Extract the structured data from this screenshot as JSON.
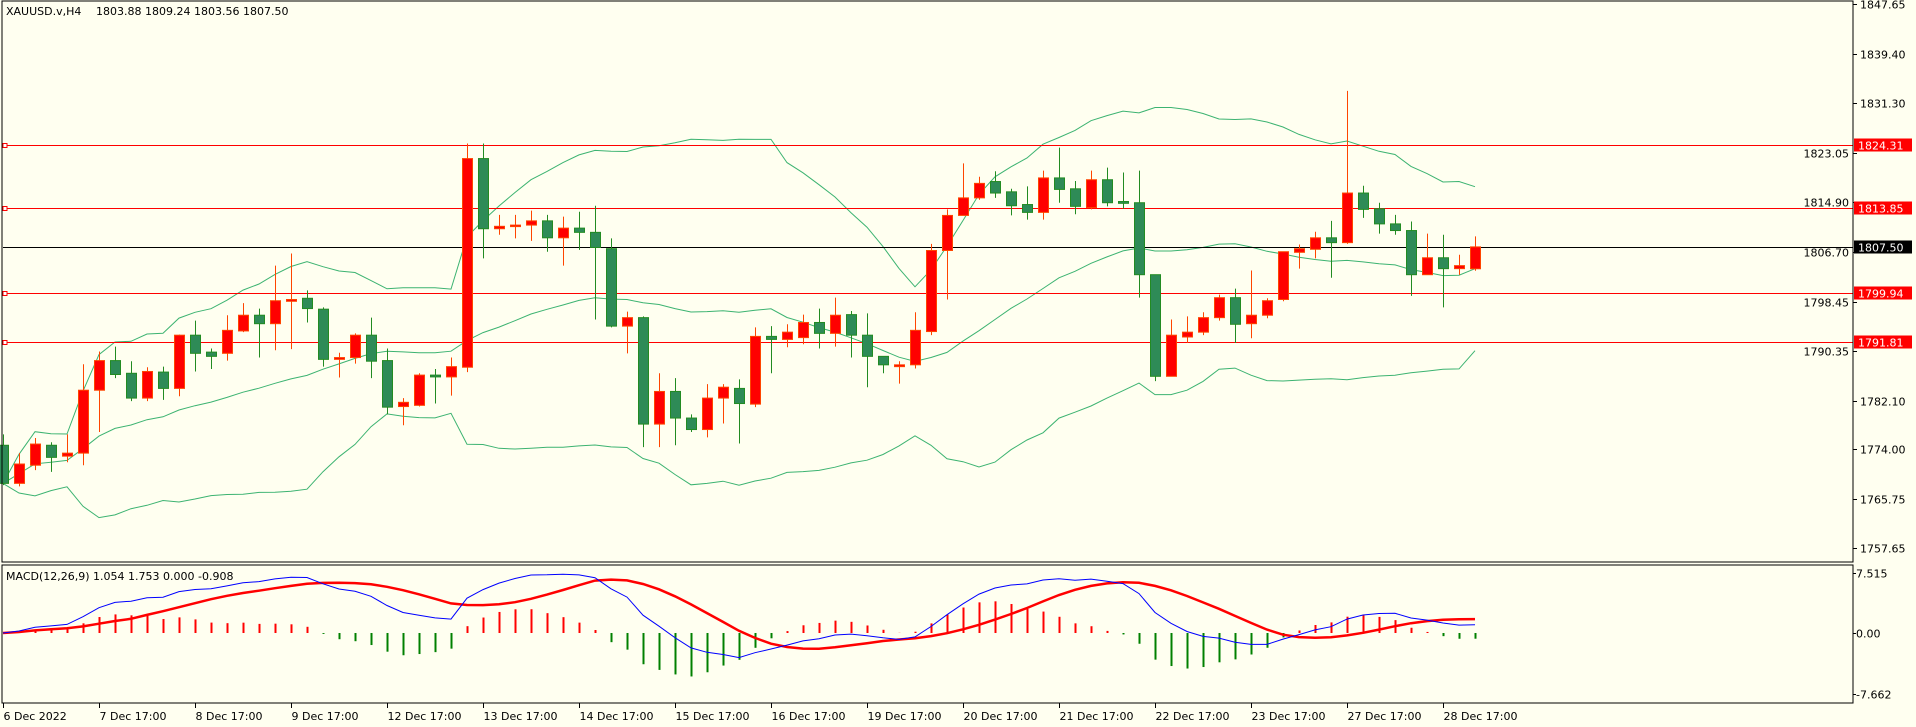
{
  "header": {
    "symbol": "XAUUSD.v,H4",
    "ohlc": "1803.88 1809.24 1803.56 1807.50"
  },
  "macd_panel": {
    "label": "MACD(12,26,9) 1.054 1.753 0.000 -0.908",
    "ticks": [
      "7.515",
      "0.00",
      "-7.662"
    ]
  },
  "price_axis": {
    "ticks": [
      "1847.65",
      "1839.40",
      "1831.30",
      "1823.05",
      "1814.90",
      "1806.70",
      "1798.45",
      "1790.35",
      "1782.10",
      "1774.00",
      "1765.75",
      "1757.65"
    ]
  },
  "levels": [
    {
      "label": "1824.31",
      "value": 1824.31,
      "color": "#FF0000"
    },
    {
      "label": "1813.85",
      "value": 1813.85,
      "color": "#FF0000"
    },
    {
      "label": "1807.50",
      "value": 1807.5,
      "color": "#000000"
    },
    {
      "label": "1799.94",
      "value": 1799.94,
      "color": "#FF0000"
    },
    {
      "label": "1791.81",
      "value": 1791.81,
      "color": "#FF0000"
    }
  ],
  "time_axis": {
    "labels": [
      "6 Dec 2022",
      "7 Dec 17:00",
      "8 Dec 17:00",
      "9 Dec 17:00",
      "12 Dec 17:00",
      "13 Dec 17:00",
      "14 Dec 17:00",
      "15 Dec 17:00",
      "16 Dec 17:00",
      "19 Dec 17:00",
      "20 Dec 17:00",
      "21 Dec 17:00",
      "22 Dec 17:00",
      "23 Dec 17:00",
      "27 Dec 17:00",
      "28 Dec 17:00"
    ],
    "candles_per_label": 6
  },
  "colors": {
    "background": "#FFFFF0",
    "bull_candle": "#FF0000",
    "bear_candle": "#2E8B57",
    "bollinger": "#3CB371",
    "macd_line": "#0000FF",
    "signal_line": "#FF0000",
    "hist_positive": "#FF0000",
    "hist_negative": "#008000"
  },
  "chart_data": {
    "type": "candlestick",
    "symbol": "XAUUSD.v",
    "timeframe": "H4",
    "ylim": [
      1755.4,
      1848.15
    ],
    "macd_ylim": [
      -8.75,
      8.5
    ],
    "indicators": [
      "Bollinger Bands (20,2)",
      "MACD(12,26,9)"
    ],
    "ohlc": [
      [
        1774.7,
        1776.5,
        1768.1,
        1768.4
      ],
      [
        1768.4,
        1773.4,
        1767.9,
        1771.6
      ],
      [
        1771.4,
        1775.9,
        1770.6,
        1774.9
      ],
      [
        1774.7,
        1775.2,
        1770.3,
        1772.7
      ],
      [
        1772.9,
        1776.5,
        1771.9,
        1773.4
      ],
      [
        1773.4,
        1788.1,
        1771.4,
        1783.8
      ],
      [
        1783.8,
        1790.2,
        1776.9,
        1788.7
      ],
      [
        1788.7,
        1791.0,
        1785.8,
        1786.4
      ],
      [
        1786.6,
        1788.6,
        1782.0,
        1782.5
      ],
      [
        1782.5,
        1787.6,
        1782.0,
        1786.9
      ],
      [
        1786.8,
        1787.7,
        1782.2,
        1784.1
      ],
      [
        1784.1,
        1793.0,
        1782.8,
        1792.9
      ],
      [
        1792.9,
        1795.3,
        1786.9,
        1789.9
      ],
      [
        1790.1,
        1790.7,
        1787.3,
        1789.4
      ],
      [
        1789.9,
        1796.2,
        1788.7,
        1793.7
      ],
      [
        1793.6,
        1798.2,
        1793.4,
        1796.2
      ],
      [
        1796.2,
        1797.3,
        1789.2,
        1794.8
      ],
      [
        1794.8,
        1804.4,
        1790.4,
        1798.6
      ],
      [
        1798.5,
        1806.4,
        1790.6,
        1798.8
      ],
      [
        1799.0,
        1800.3,
        1795.0,
        1797.3
      ],
      [
        1797.2,
        1797.5,
        1787.7,
        1788.9
      ],
      [
        1788.9,
        1790.0,
        1785.9,
        1789.2
      ],
      [
        1789.2,
        1793.2,
        1788.2,
        1792.9
      ],
      [
        1792.9,
        1795.8,
        1785.8,
        1788.6
      ],
      [
        1788.7,
        1790.7,
        1779.8,
        1781.0
      ],
      [
        1781.1,
        1782.5,
        1778.0,
        1781.8
      ],
      [
        1781.3,
        1786.6,
        1781.1,
        1786.3
      ],
      [
        1786.3,
        1787.3,
        1781.6,
        1786.0
      ],
      [
        1786.0,
        1789.2,
        1782.9,
        1787.7
      ],
      [
        1787.6,
        1824.6,
        1786.8,
        1822.1
      ],
      [
        1822.1,
        1824.6,
        1805.6,
        1810.5
      ],
      [
        1810.5,
        1812.8,
        1809.5,
        1810.9
      ],
      [
        1810.9,
        1812.8,
        1808.9,
        1811.1
      ],
      [
        1811.1,
        1813.5,
        1808.5,
        1811.8
      ],
      [
        1811.8,
        1812.8,
        1806.7,
        1809.0
      ],
      [
        1809.0,
        1812.5,
        1804.4,
        1810.6
      ],
      [
        1810.6,
        1813.3,
        1807.0,
        1809.9
      ],
      [
        1809.9,
        1814.3,
        1795.5,
        1807.4
      ],
      [
        1807.2,
        1808.9,
        1794.2,
        1794.4
      ],
      [
        1794.4,
        1796.8,
        1789.9,
        1795.8
      ],
      [
        1795.8,
        1796.0,
        1774.4,
        1778.2
      ],
      [
        1778.2,
        1786.6,
        1774.4,
        1783.6
      ],
      [
        1783.6,
        1785.8,
        1774.7,
        1779.2
      ],
      [
        1779.2,
        1779.8,
        1776.9,
        1777.3
      ],
      [
        1777.3,
        1784.8,
        1776.0,
        1782.5
      ],
      [
        1782.5,
        1784.8,
        1778.3,
        1784.3
      ],
      [
        1784.1,
        1785.6,
        1775.0,
        1781.6
      ],
      [
        1781.5,
        1794.2,
        1781.0,
        1792.7
      ],
      [
        1792.7,
        1794.4,
        1786.6,
        1792.2
      ],
      [
        1792.2,
        1794.7,
        1790.9,
        1793.4
      ],
      [
        1792.5,
        1796.3,
        1791.4,
        1795.0
      ],
      [
        1795.0,
        1797.3,
        1790.7,
        1793.2
      ],
      [
        1793.2,
        1799.1,
        1791.0,
        1796.2
      ],
      [
        1796.3,
        1796.9,
        1789.2,
        1792.9
      ],
      [
        1792.9,
        1796.5,
        1784.3,
        1789.4
      ],
      [
        1789.4,
        1789.4,
        1786.6,
        1788.0
      ],
      [
        1787.7,
        1788.6,
        1784.9,
        1788.0
      ],
      [
        1788.0,
        1796.7,
        1787.4,
        1793.7
      ],
      [
        1793.5,
        1808.0,
        1792.9,
        1806.9
      ],
      [
        1806.9,
        1813.7,
        1798.8,
        1812.7
      ],
      [
        1812.7,
        1821.3,
        1812.7,
        1815.6
      ],
      [
        1815.6,
        1819.1,
        1815.3,
        1818.0
      ],
      [
        1818.3,
        1820.0,
        1815.6,
        1816.4
      ],
      [
        1816.6,
        1817.1,
        1812.7,
        1814.3
      ],
      [
        1814.5,
        1817.5,
        1812.0,
        1813.2
      ],
      [
        1813.2,
        1820.1,
        1812.0,
        1818.9
      ],
      [
        1818.9,
        1823.9,
        1814.8,
        1817.0
      ],
      [
        1817.1,
        1818.4,
        1812.9,
        1814.2
      ],
      [
        1814.0,
        1820.1,
        1813.7,
        1818.6
      ],
      [
        1818.6,
        1820.6,
        1814.2,
        1814.8
      ],
      [
        1815.0,
        1819.8,
        1813.8,
        1814.7
      ],
      [
        1814.8,
        1820.1,
        1799.1,
        1802.9
      ],
      [
        1802.9,
        1802.9,
        1785.3,
        1786.1
      ],
      [
        1786.1,
        1795.5,
        1786.1,
        1792.9
      ],
      [
        1792.6,
        1796.0,
        1791.6,
        1793.4
      ],
      [
        1793.4,
        1796.7,
        1792.9,
        1795.8
      ],
      [
        1795.8,
        1799.6,
        1795.3,
        1799.1
      ],
      [
        1799.1,
        1800.6,
        1791.6,
        1794.7
      ],
      [
        1794.8,
        1803.6,
        1792.4,
        1796.2
      ],
      [
        1796.2,
        1799.0,
        1795.7,
        1798.6
      ],
      [
        1798.8,
        1806.7,
        1798.5,
        1806.7
      ],
      [
        1806.6,
        1807.9,
        1803.9,
        1807.2
      ],
      [
        1807.1,
        1810.0,
        1805.6,
        1809.0
      ],
      [
        1809.0,
        1811.8,
        1802.4,
        1808.2
      ],
      [
        1808.2,
        1833.3,
        1808.0,
        1816.4
      ],
      [
        1816.4,
        1817.6,
        1812.3,
        1813.7
      ],
      [
        1813.8,
        1814.8,
        1809.7,
        1811.3
      ],
      [
        1811.3,
        1812.8,
        1809.5,
        1810.2
      ],
      [
        1810.2,
        1811.7,
        1799.4,
        1802.9
      ],
      [
        1802.9,
        1809.7,
        1802.9,
        1805.7
      ],
      [
        1805.7,
        1809.5,
        1797.5,
        1803.9
      ],
      [
        1803.9,
        1806.2,
        1802.9,
        1804.4
      ],
      [
        1803.88,
        1809.24,
        1803.56,
        1807.5
      ]
    ]
  }
}
